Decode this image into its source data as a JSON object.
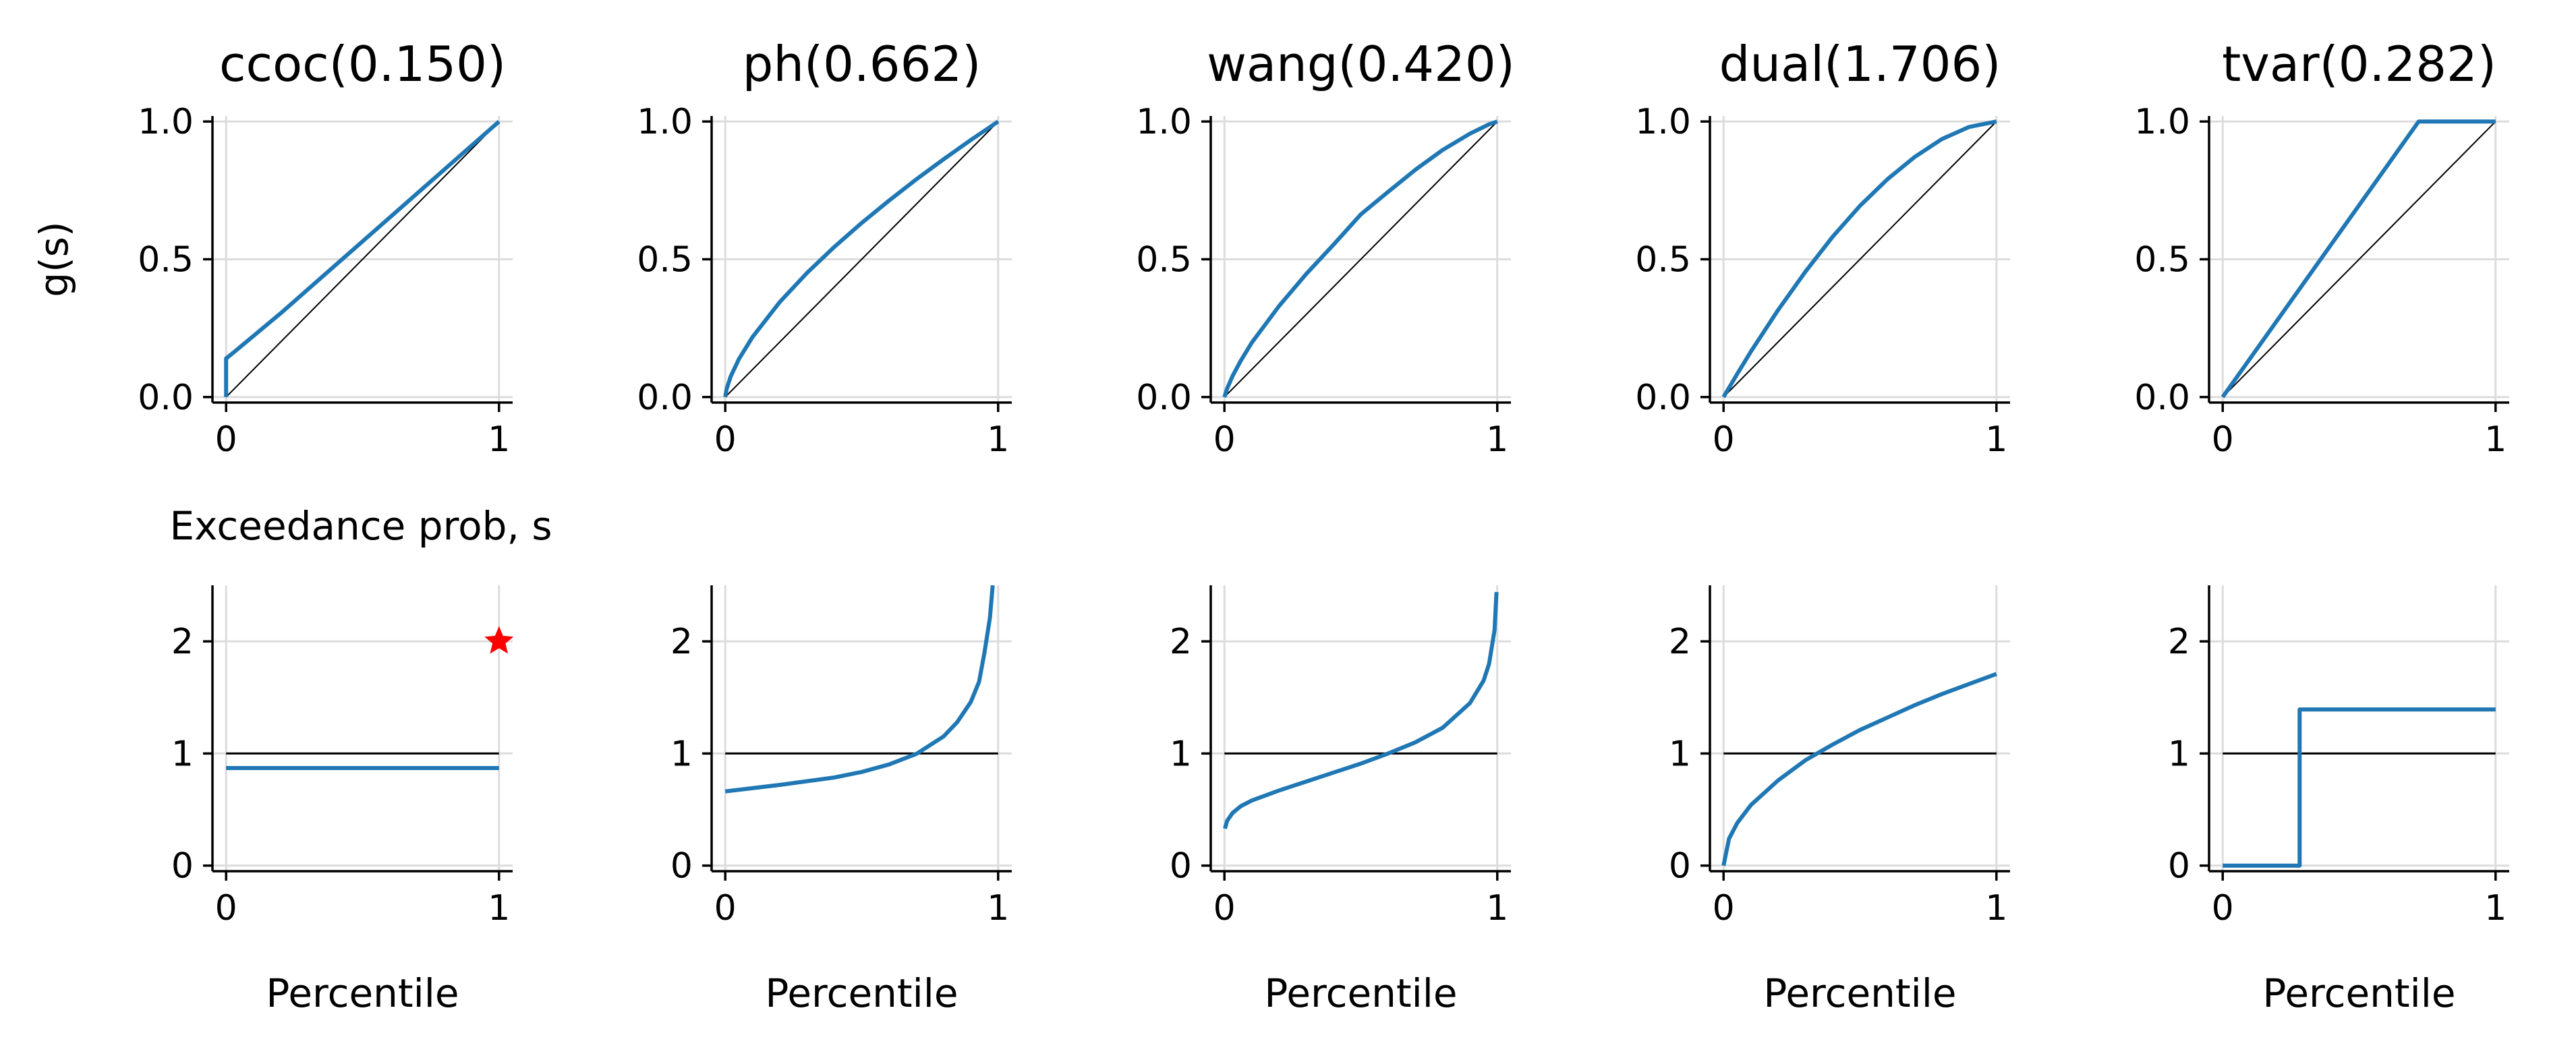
{
  "chart_data": [
    {
      "type": "line",
      "panel": "distortion",
      "title": "ccoc(0.150)",
      "ylabel": "g(s)",
      "xlabel": "Exceedance prob, s",
      "xlim": [
        -0.05,
        1.05
      ],
      "ylim": [
        -0.02,
        1.02
      ],
      "xticks": [
        "0",
        "1"
      ],
      "yticks": [
        "0.0",
        "0.5",
        "1.0"
      ],
      "grid": true,
      "reference": "diagonal y = x",
      "series": [
        {
          "x": [
            0,
            0,
            0.03,
            0.2,
            0.4,
            0.6,
            0.8,
            1.0
          ],
          "y": [
            0,
            0.14,
            0.164,
            0.304,
            0.478,
            0.652,
            0.826,
            1.0
          ]
        }
      ]
    },
    {
      "type": "line",
      "panel": "distortion",
      "title": "ph(0.662)",
      "xlim": [
        -0.05,
        1.05
      ],
      "ylim": [
        -0.02,
        1.02
      ],
      "xticks": [
        "0",
        "1"
      ],
      "yticks": [
        "0.0",
        "0.5",
        "1.0"
      ],
      "grid": true,
      "reference": "diagonal y = x",
      "series": [
        {
          "x": [
            0,
            0.005,
            0.02,
            0.05,
            0.1,
            0.2,
            0.3,
            0.4,
            0.5,
            0.6,
            0.7,
            0.8,
            0.9,
            1.0
          ],
          "y": [
            0,
            0.03,
            0.075,
            0.138,
            0.218,
            0.345,
            0.451,
            0.545,
            0.632,
            0.713,
            0.79,
            0.863,
            0.933,
            1.0
          ]
        }
      ]
    },
    {
      "type": "line",
      "panel": "distortion",
      "title": "wang(0.420)",
      "xlim": [
        -0.05,
        1.05
      ],
      "ylim": [
        -0.02,
        1.02
      ],
      "xticks": [
        "0",
        "1"
      ],
      "yticks": [
        "0.0",
        "0.5",
        "1.0"
      ],
      "grid": true,
      "reference": "diagonal y = x",
      "series": [
        {
          "x": [
            0,
            0.01,
            0.03,
            0.06,
            0.1,
            0.2,
            0.3,
            0.4,
            0.5,
            0.6,
            0.7,
            0.8,
            0.9,
            0.97,
            1.0
          ],
          "y": [
            0,
            0.031,
            0.077,
            0.132,
            0.197,
            0.33,
            0.447,
            0.553,
            0.663,
            0.745,
            0.825,
            0.897,
            0.956,
            0.99,
            1.0
          ]
        }
      ]
    },
    {
      "type": "line",
      "panel": "distortion",
      "title": "dual(1.706)",
      "xlim": [
        -0.05,
        1.05
      ],
      "ylim": [
        -0.02,
        1.02
      ],
      "xticks": [
        "0",
        "1"
      ],
      "yticks": [
        "0.0",
        "0.5",
        "1.0"
      ],
      "grid": true,
      "reference": "diagonal y = x",
      "series": [
        {
          "x": [
            0,
            0.05,
            0.1,
            0.2,
            0.3,
            0.4,
            0.5,
            0.6,
            0.7,
            0.8,
            0.9,
            1.0
          ],
          "y": [
            0,
            0.084,
            0.165,
            0.316,
            0.455,
            0.582,
            0.694,
            0.79,
            0.871,
            0.936,
            0.98,
            1.0
          ]
        }
      ]
    },
    {
      "type": "line",
      "panel": "distortion",
      "title": "tvar(0.282)",
      "xlim": [
        -0.05,
        1.05
      ],
      "ylim": [
        -0.02,
        1.02
      ],
      "xticks": [
        "0",
        "1"
      ],
      "yticks": [
        "0.0",
        "0.5",
        "1.0"
      ],
      "grid": true,
      "reference": "diagonal y = x",
      "series": [
        {
          "x": [
            0,
            0.718,
            1.0
          ],
          "y": [
            0,
            1.0,
            1.0
          ]
        }
      ]
    },
    {
      "type": "line",
      "panel": "density",
      "xlabel": "Percentile",
      "xlim": [
        -0.05,
        1.05
      ],
      "ylim": [
        -0.05,
        2.5
      ],
      "xticks": [
        "0",
        "1"
      ],
      "yticks": [
        "0",
        "1",
        "2"
      ],
      "grid": true,
      "reference": "horizontal y = 1",
      "series": [
        {
          "x": [
            0,
            1.0
          ],
          "y": [
            0.87,
            0.87
          ]
        }
      ],
      "markers": [
        {
          "x": 1.0,
          "y": 2.0,
          "symbol": "star",
          "color": "#ff0000"
        }
      ]
    },
    {
      "type": "line",
      "panel": "density",
      "xlabel": "Percentile",
      "xlim": [
        -0.05,
        1.05
      ],
      "ylim": [
        -0.05,
        2.5
      ],
      "xticks": [
        "0",
        "1"
      ],
      "yticks": [
        "0",
        "1",
        "2"
      ],
      "grid": true,
      "reference": "horizontal y = 1",
      "series": [
        {
          "x": [
            0,
            0.2,
            0.4,
            0.5,
            0.6,
            0.7,
            0.8,
            0.85,
            0.9,
            0.93,
            0.95,
            0.97,
            0.98
          ],
          "y": [
            0.662,
            0.72,
            0.786,
            0.835,
            0.902,
            0.996,
            1.152,
            1.28,
            1.46,
            1.64,
            1.9,
            2.21,
            2.5
          ]
        }
      ]
    },
    {
      "type": "line",
      "panel": "density",
      "xlabel": "Percentile",
      "xlim": [
        -0.05,
        1.05
      ],
      "ylim": [
        -0.05,
        2.5
      ],
      "xticks": [
        "0",
        "1"
      ],
      "yticks": [
        "0",
        "1",
        "2"
      ],
      "grid": true,
      "reference": "horizontal y = 1",
      "series": [
        {
          "x": [
            0.002,
            0.01,
            0.03,
            0.06,
            0.1,
            0.2,
            0.3,
            0.4,
            0.5,
            0.6,
            0.7,
            0.8,
            0.9,
            0.95,
            0.97,
            0.99,
            0.997
          ],
          "y": [
            0.33,
            0.4,
            0.47,
            0.53,
            0.58,
            0.67,
            0.75,
            0.83,
            0.91,
            1.0,
            1.1,
            1.23,
            1.45,
            1.65,
            1.8,
            2.1,
            2.44
          ]
        }
      ]
    },
    {
      "type": "line",
      "panel": "density",
      "xlabel": "Percentile",
      "xlim": [
        -0.05,
        1.05
      ],
      "ylim": [
        -0.05,
        2.5
      ],
      "xticks": [
        "0",
        "1"
      ],
      "yticks": [
        "0",
        "1",
        "2"
      ],
      "grid": true,
      "reference": "horizontal y = 1",
      "series": [
        {
          "x": [
            0,
            0.02,
            0.05,
            0.1,
            0.2,
            0.3,
            0.4,
            0.5,
            0.6,
            0.7,
            0.8,
            0.9,
            1.0
          ],
          "y": [
            0,
            0.24,
            0.38,
            0.54,
            0.76,
            0.94,
            1.08,
            1.21,
            1.32,
            1.43,
            1.53,
            1.62,
            1.71
          ]
        }
      ]
    },
    {
      "type": "line",
      "panel": "density",
      "xlabel": "Percentile",
      "xlim": [
        -0.05,
        1.05
      ],
      "ylim": [
        -0.05,
        2.5
      ],
      "xticks": [
        "0",
        "1"
      ],
      "yticks": [
        "0",
        "1",
        "2"
      ],
      "grid": true,
      "reference": "horizontal y = 1",
      "series": [
        {
          "x": [
            0,
            0.282,
            0.282,
            1.0
          ],
          "y": [
            0,
            0,
            1.393,
            1.393
          ]
        }
      ]
    }
  ]
}
